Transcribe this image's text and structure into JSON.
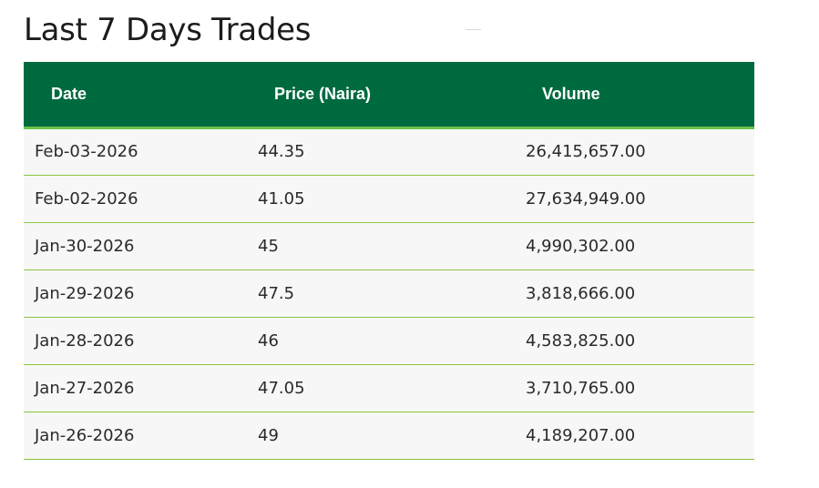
{
  "page": {
    "title": "Last 7 Days Trades"
  },
  "table": {
    "headers": {
      "date": "Date",
      "price": "Price (Naira)",
      "volume": "Volume"
    },
    "rows": [
      {
        "date": "Feb-03-2026",
        "price": "44.35",
        "volume": "26,415,657.00"
      },
      {
        "date": "Feb-02-2026",
        "price": "41.05",
        "volume": "27,634,949.00"
      },
      {
        "date": "Jan-30-2026",
        "price": "45",
        "volume": "4,990,302.00"
      },
      {
        "date": "Jan-29-2026",
        "price": "47.5",
        "volume": "3,818,666.00"
      },
      {
        "date": "Jan-28-2026",
        "price": "46",
        "volume": "4,583,825.00"
      },
      {
        "date": "Jan-27-2026",
        "price": "47.05",
        "volume": "3,710,765.00"
      },
      {
        "date": "Jan-26-2026",
        "price": "49",
        "volume": "4,189,207.00"
      }
    ]
  },
  "colors": {
    "header_background": "#006a3f",
    "header_underline": "#6cc24a",
    "row_divider": "#8cc63f",
    "row_background": "#f7f7f7",
    "header_text": "#ffffff",
    "body_text": "#2a2a2a"
  }
}
